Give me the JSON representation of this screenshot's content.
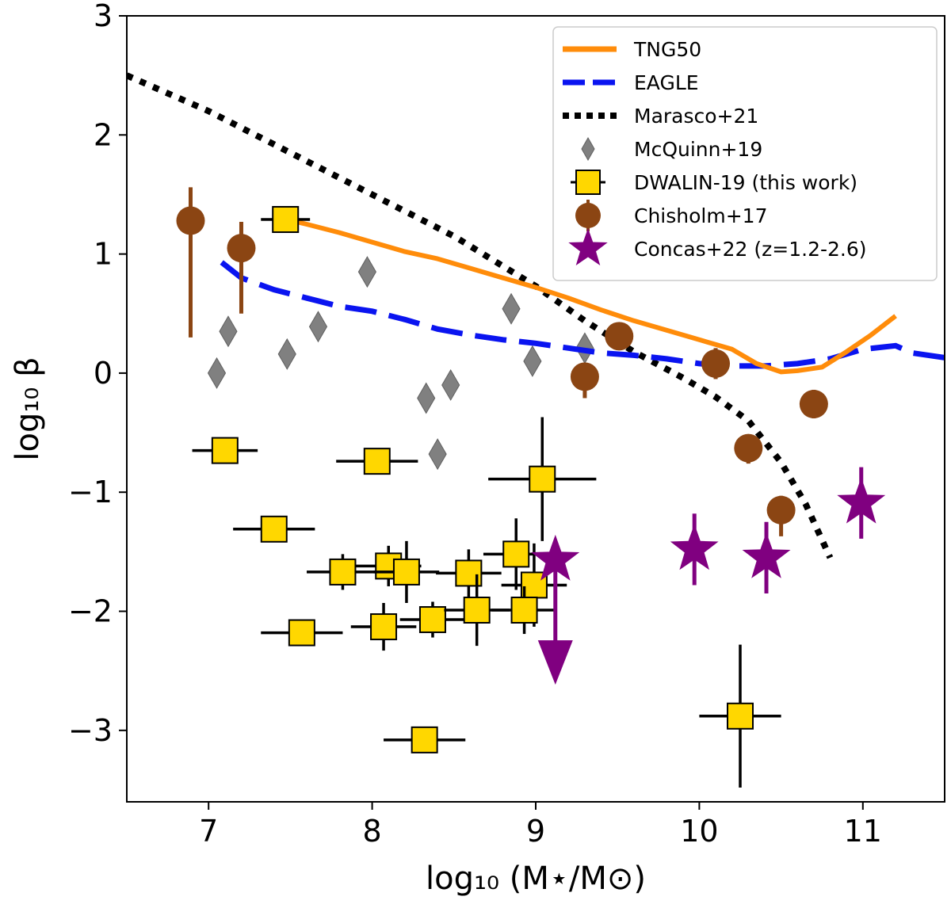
{
  "chart_data": {
    "type": "scatter",
    "title": "",
    "xlabel": "log₁₀ (M⋆/M⊙)",
    "ylabel": "log₁₀ β",
    "xlim": [
      6.5,
      11.5
    ],
    "ylim": [
      -3.6,
      3.0
    ],
    "xticks": [
      7,
      8,
      9,
      10,
      11
    ],
    "yticks": [
      3,
      2,
      1,
      0,
      -1,
      -2,
      -3
    ],
    "xtick_labels": [
      "7",
      "8",
      "9",
      "10",
      "11"
    ],
    "ytick_labels": [
      "3",
      "2",
      "1",
      "0",
      "−1",
      "−2",
      "−3"
    ],
    "grid": false,
    "legend_position": "top-right",
    "colors": {
      "tng50": "#ff8c0a",
      "eagle": "#0a14f0",
      "marasco": "#000000",
      "mcquinn": "#808080",
      "dwalin": "#ffd700",
      "chisholm": "#8b4513",
      "concas": "#800080"
    },
    "series": [
      {
        "id": "tng50",
        "name": "TNG50",
        "kind": "line",
        "style": "solid",
        "x": [
          7.45,
          7.6,
          7.8,
          8.0,
          8.2,
          8.4,
          8.6,
          8.8,
          9.0,
          9.2,
          9.4,
          9.6,
          9.8,
          10.0,
          10.2,
          10.35,
          10.5,
          10.6,
          10.75,
          10.9,
          11.05,
          11.2
        ],
        "y": [
          1.3,
          1.25,
          1.18,
          1.1,
          1.02,
          0.96,
          0.88,
          0.8,
          0.72,
          0.63,
          0.53,
          0.44,
          0.36,
          0.28,
          0.2,
          0.08,
          0.01,
          0.02,
          0.05,
          0.18,
          0.32,
          0.48
        ]
      },
      {
        "id": "eagle",
        "name": "EAGLE",
        "kind": "line",
        "style": "dashed",
        "x": [
          7.08,
          7.2,
          7.4,
          7.6,
          7.8,
          8.0,
          8.2,
          8.4,
          8.6,
          8.8,
          9.0,
          9.2,
          9.4,
          9.6,
          9.8,
          10.0,
          10.2,
          10.4,
          10.6,
          10.8,
          11.0,
          11.2,
          11.3,
          11.5
        ],
        "y": [
          0.93,
          0.8,
          0.7,
          0.63,
          0.56,
          0.52,
          0.45,
          0.37,
          0.32,
          0.28,
          0.25,
          0.21,
          0.17,
          0.15,
          0.12,
          0.08,
          0.06,
          0.06,
          0.08,
          0.12,
          0.2,
          0.23,
          0.17,
          0.13
        ]
      },
      {
        "id": "marasco",
        "name": "Marasco+21",
        "kind": "line",
        "style": "dotted",
        "x": [
          6.5,
          7.0,
          7.5,
          8.0,
          8.5,
          9.0,
          9.3,
          9.6,
          9.9,
          10.1,
          10.3,
          10.5,
          10.65,
          10.8
        ],
        "y": [
          2.5,
          2.2,
          1.85,
          1.5,
          1.15,
          0.73,
          0.44,
          0.18,
          -0.04,
          -0.2,
          -0.4,
          -0.75,
          -1.1,
          -1.55
        ]
      },
      {
        "id": "mcquinn",
        "name": "McQuinn+19",
        "kind": "scatter",
        "marker": "diamond",
        "x": [
          7.05,
          7.12,
          7.48,
          7.67,
          7.97,
          8.33,
          8.48,
          8.4,
          8.85,
          8.98,
          9.3
        ],
        "y": [
          0.0,
          0.35,
          0.16,
          0.39,
          0.85,
          -0.21,
          -0.1,
          -0.68,
          0.54,
          0.1,
          0.21
        ]
      },
      {
        "id": "dwalin",
        "name": "DWALIN-19 (this work)",
        "kind": "scatter",
        "marker": "square",
        "x": [
          7.47,
          7.1,
          8.03,
          9.04,
          7.4,
          7.82,
          8.1,
          8.21,
          8.59,
          8.88,
          8.99,
          7.57,
          8.07,
          8.37,
          8.64,
          8.93,
          8.32,
          10.25
        ],
        "y": [
          1.29,
          -0.65,
          -0.74,
          -0.89,
          -1.31,
          -1.67,
          -1.62,
          -1.67,
          -1.68,
          -1.52,
          -1.78,
          -2.18,
          -2.13,
          -2.07,
          -1.99,
          -1.99,
          -3.08,
          -2.88
        ],
        "xerr": [
          0.15,
          0.2,
          0.25,
          0.33,
          0.25,
          0.22,
          0.2,
          0.2,
          0.2,
          0.2,
          0.2,
          0.25,
          0.2,
          0.2,
          0.2,
          0.2,
          0.25,
          0.25
        ],
        "yerr": [
          0.1,
          0.1,
          0.08,
          0.52,
          0.08,
          0.15,
          0.17,
          0.26,
          0.2,
          0.3,
          0.35,
          0.1,
          0.2,
          0.15,
          0.3,
          0.2,
          0.08,
          0.6
        ]
      },
      {
        "id": "chisholm",
        "name": "Chisholm+17",
        "kind": "scatter",
        "marker": "circle",
        "x": [
          6.89,
          7.2,
          9.3,
          9.51,
          10.1,
          10.3,
          10.5,
          10.7
        ],
        "y": [
          1.28,
          1.05,
          -0.03,
          0.31,
          0.08,
          -0.63,
          -1.15,
          -0.26
        ],
        "yerr_low": [
          0.98,
          0.55,
          0.18,
          0.02,
          0.13,
          0.13,
          0.22,
          0.12
        ],
        "yerr_high": [
          0.28,
          0.22,
          0.1,
          0.02,
          0.13,
          0.1,
          0.12,
          0.12
        ]
      },
      {
        "id": "concas",
        "name": "Concas+22 (z=1.2-2.6)",
        "kind": "scatter",
        "marker": "star",
        "x": [
          9.12,
          9.97,
          10.41,
          10.99
        ],
        "y": [
          -1.57,
          -1.48,
          -1.55,
          -1.09
        ],
        "yerr": [
          0.0,
          0.3,
          0.3,
          0.3
        ],
        "upper_limit": [
          true,
          false,
          false,
          false
        ],
        "arrow_to": [
          -2.55,
          null,
          null,
          null
        ]
      }
    ]
  }
}
